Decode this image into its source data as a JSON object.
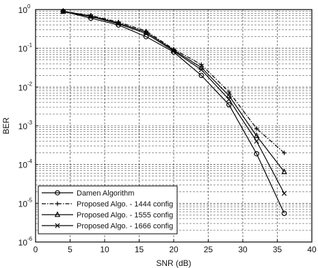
{
  "chart_data": {
    "type": "line",
    "title": "",
    "xlabel": "SNR (dB)",
    "ylabel": "BER",
    "xlim": [
      0,
      40
    ],
    "ylim": [
      1e-06,
      1
    ],
    "yscale": "log",
    "grid": true,
    "legend_position": "bottom-left",
    "x_ticks": [
      0,
      5,
      10,
      15,
      20,
      25,
      30,
      35,
      40
    ],
    "x_tick_labels": [
      "0",
      "5",
      "10",
      "15",
      "20",
      "25",
      "30",
      "35",
      "40"
    ],
    "y_ticks": [
      1e-06,
      1e-05,
      0.0001,
      0.001,
      0.01,
      0.1,
      1
    ],
    "y_tick_base": [
      "10",
      "10",
      "10",
      "10",
      "10",
      "10",
      "10"
    ],
    "y_tick_exp": [
      "-6",
      "-5",
      "-4",
      "-3",
      "-2",
      "-1",
      "0"
    ],
    "series": [
      {
        "name": "Damen Algorithm",
        "marker": "circle",
        "line_style": "solid",
        "x": [
          4,
          8,
          12,
          16,
          20,
          24,
          28,
          32,
          36
        ],
        "y": [
          0.9,
          0.6,
          0.4,
          0.2,
          0.08,
          0.02,
          0.0035,
          0.00019,
          5.5e-06
        ]
      },
      {
        "name": "Proposed Algo. - 1444 config",
        "marker": "plus",
        "line_style": "dashdot",
        "x": [
          4,
          8,
          12,
          16,
          20,
          24,
          28,
          32,
          36
        ],
        "y": [
          0.9,
          0.7,
          0.48,
          0.28,
          0.095,
          0.038,
          0.0075,
          0.00085,
          0.0002
        ]
      },
      {
        "name": "Proposed Algo. - 1555 config",
        "marker": "triangle",
        "line_style": "solid",
        "x": [
          4,
          8,
          12,
          16,
          20,
          24,
          28,
          32,
          36
        ],
        "y": [
          0.9,
          0.68,
          0.45,
          0.26,
          0.09,
          0.032,
          0.006,
          0.00055,
          6.5e-05
        ]
      },
      {
        "name": "Proposed Algo. - 1666 config",
        "marker": "x",
        "line_style": "solid",
        "x": [
          4,
          8,
          12,
          16,
          20,
          24,
          28,
          32,
          36
        ],
        "y": [
          0.88,
          0.66,
          0.43,
          0.24,
          0.085,
          0.028,
          0.0048,
          0.0004,
          1.8e-05
        ]
      }
    ]
  }
}
